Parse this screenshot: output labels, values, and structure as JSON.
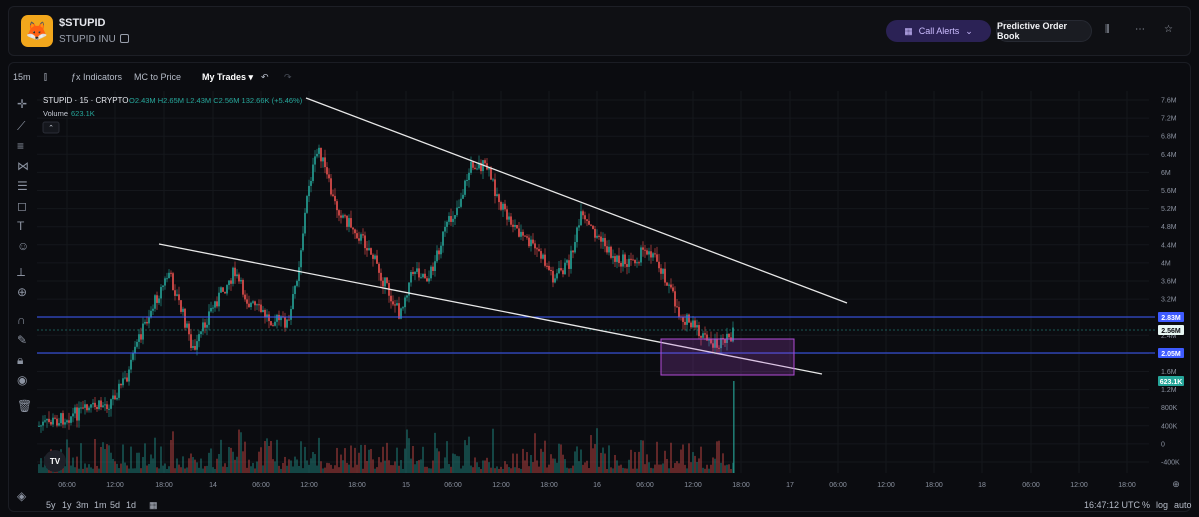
{
  "header": {
    "symbol": "$STUPID",
    "name": "STUPID INU",
    "call_alerts": "Call Alerts",
    "order_book": "Predictive Order Book",
    "token_icon": "fox-mascot"
  },
  "toolbar": {
    "timeframe": "15m",
    "indicators": "Indicators",
    "mc_to_price": "MC to Price",
    "my_trades": "My Trades"
  },
  "legend": {
    "title": "STUPID · 15 · CRYPTO",
    "ohlc": "O2.43M H2.65M L2.43M C2.56M 132.66K (+5.46%)",
    "volume_label": "Volume",
    "volume_value": "623.1K"
  },
  "price_axis": [
    "7.6M",
    "7.2M",
    "6.8M",
    "6.4M",
    "6M",
    "5.6M",
    "5.2M",
    "4.8M",
    "4.4M",
    "4M",
    "3.6M",
    "3.2M",
    "2.8M",
    "2.4M",
    "2M",
    "1.6M",
    "1.2M",
    "800K",
    "400K",
    "0",
    "-400K"
  ],
  "price_tags": {
    "upper": "2.83M",
    "current": "2.56M",
    "lower": "2.05M",
    "volume": "623.1K"
  },
  "time_axis": [
    "06:00",
    "12:00",
    "18:00",
    "14",
    "06:00",
    "12:00",
    "18:00",
    "15",
    "06:00",
    "12:00",
    "18:00",
    "16",
    "06:00",
    "12:00",
    "18:00",
    "17",
    "06:00",
    "12:00",
    "18:00",
    "18",
    "06:00",
    "12:00",
    "18:00"
  ],
  "bottom_bar": {
    "ranges": [
      "5y",
      "1y",
      "3m",
      "1m",
      "5d",
      "1d"
    ],
    "clock": "16:47:12 UTC",
    "pct": "%",
    "log": "log",
    "auto": "auto"
  },
  "colors": {
    "up": "#26a69a",
    "down": "#ef5350",
    "hline": "#3e5bff",
    "box": "#b14bd6"
  }
}
